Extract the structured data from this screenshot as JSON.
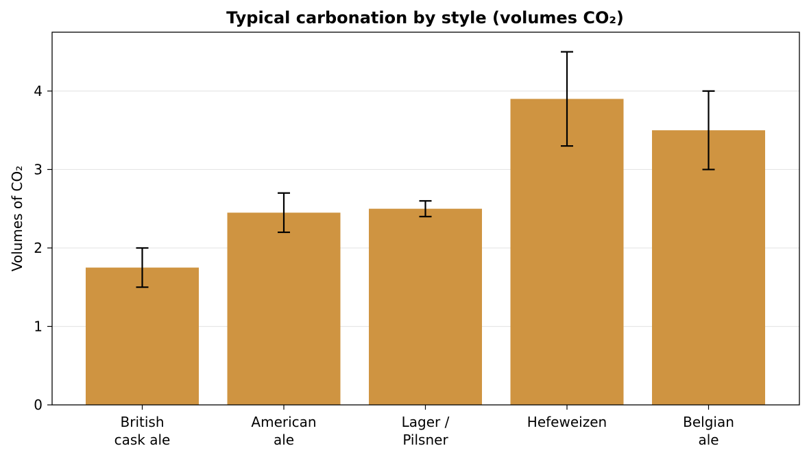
{
  "chart_data": {
    "type": "bar",
    "title": "Typical carbonation by style (volumes CO₂)",
    "xlabel": "",
    "ylabel": "Volumes of CO₂",
    "categories": [
      "British\ncask ale",
      "American\nale",
      "Lager /\nPilsner",
      "Hefeweizen",
      "Belgian\nale"
    ],
    "values": [
      1.75,
      2.45,
      2.5,
      3.9,
      3.5
    ],
    "error_low": [
      1.5,
      2.2,
      2.4,
      3.3,
      3.0
    ],
    "error_high": [
      2.0,
      2.7,
      2.6,
      4.5,
      4.0
    ],
    "ylim": [
      0,
      4.75
    ],
    "yticks": [
      0,
      1,
      2,
      3,
      4
    ],
    "grid": "horizontal",
    "legend": "none",
    "colors": {
      "bar": "#cf9441",
      "error": "#000000",
      "grid": "#e6e6e6",
      "axis": "#000000"
    }
  }
}
